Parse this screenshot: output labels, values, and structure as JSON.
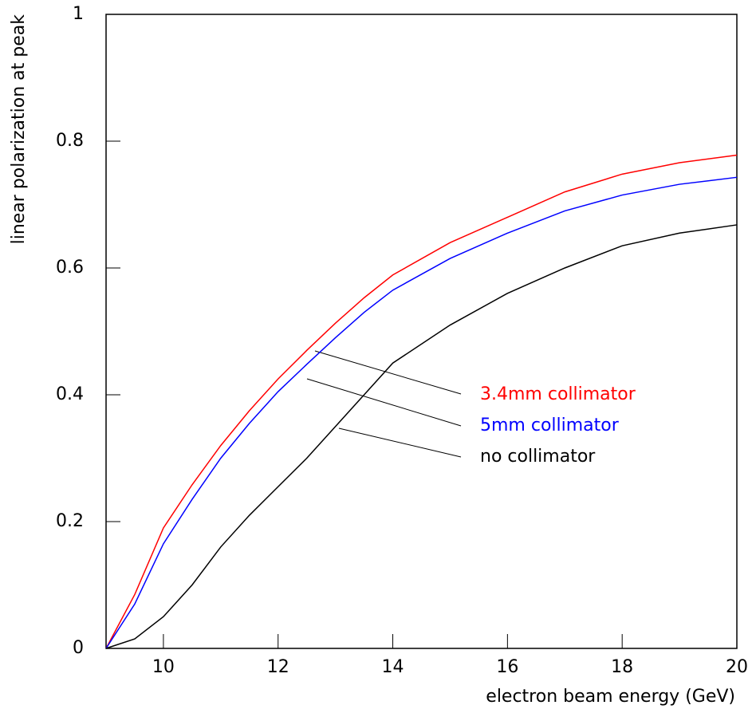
{
  "chart_data": {
    "type": "line",
    "x_label": "electron beam energy (GeV)",
    "y_label": "linear polarization at peak",
    "x": [
      9,
      9.5,
      10,
      10.5,
      11,
      11.5,
      12,
      12.5,
      13,
      13.5,
      14,
      15,
      16,
      17,
      18,
      19,
      20
    ],
    "series": [
      {
        "name": "3.4mm collimator",
        "color": "#ff0000",
        "values": [
          0,
          0.085,
          0.19,
          0.258,
          0.32,
          0.375,
          0.425,
          0.47,
          0.513,
          0.553,
          0.589,
          0.64,
          0.68,
          0.72,
          0.748,
          0.766,
          0.778
        ]
      },
      {
        "name": "5mm collimator",
        "color": "#0000ff",
        "values": [
          0,
          0.07,
          0.165,
          0.235,
          0.3,
          0.355,
          0.405,
          0.448,
          0.49,
          0.53,
          0.565,
          0.615,
          0.655,
          0.69,
          0.715,
          0.732,
          0.743
        ]
      },
      {
        "name": "no collimator",
        "color": "#000000",
        "values": [
          0,
          0.015,
          0.05,
          0.1,
          0.16,
          0.21,
          0.255,
          0.3,
          0.35,
          0.4,
          0.45,
          0.51,
          0.56,
          0.6,
          0.635,
          0.655,
          0.668
        ]
      }
    ],
    "xlim": [
      9,
      20
    ],
    "xticks": [
      10,
      12,
      14,
      16,
      18,
      20
    ],
    "ylim": [
      0,
      1
    ],
    "yticks": [
      0,
      0.2,
      0.4,
      0.6,
      0.8,
      1
    ]
  }
}
